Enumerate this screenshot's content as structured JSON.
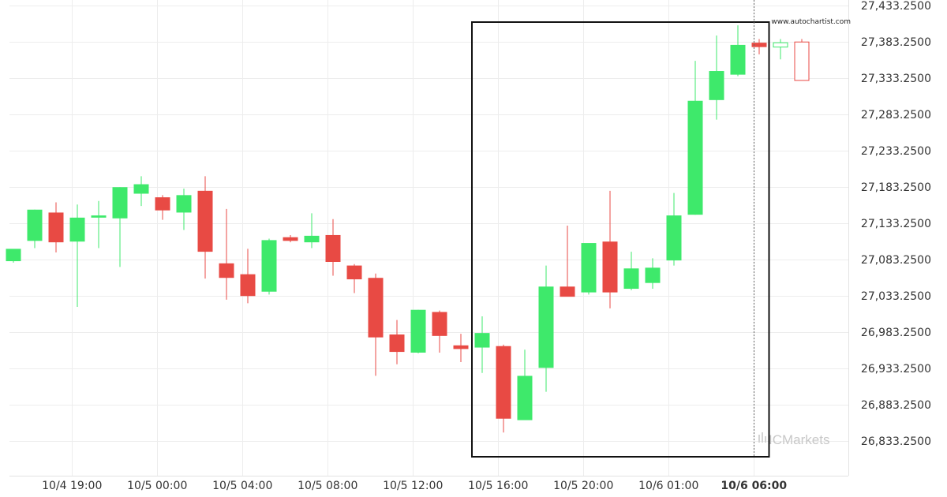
{
  "chart_data": {
    "type": "candlestick",
    "watermark_text": "www.autochartist.com",
    "brand_text": "ICMarkets",
    "grid": true,
    "y_axis_side": "right",
    "ylim": [
      26808.25,
      27433.25
    ],
    "y_ticks": [
      "27,433.2500",
      "27,383.2500",
      "27,333.2500",
      "27,283.2500",
      "27,233.2500",
      "27,183.2500",
      "27,133.2500",
      "27,083.2500",
      "27,033.2500",
      "26,983.2500",
      "26,933.2500",
      "26,883.2500",
      "26,833.2500"
    ],
    "x_labels": [
      {
        "label": "10/4 19:00",
        "index": 2.75,
        "bold": false
      },
      {
        "label": "10/5 00:00",
        "index": 6.75,
        "bold": false
      },
      {
        "label": "10/5 04:00",
        "index": 10.75,
        "bold": false
      },
      {
        "label": "10/5 08:00",
        "index": 14.75,
        "bold": false
      },
      {
        "label": "10/5 12:00",
        "index": 18.75,
        "bold": false
      },
      {
        "label": "10/5 16:00",
        "index": 22.75,
        "bold": false
      },
      {
        "label": "10/5 20:00",
        "index": 26.75,
        "bold": false
      },
      {
        "label": "10/6 01:00",
        "index": 30.75,
        "bold": false
      },
      {
        "label": "10/6 06:00",
        "index": 34.75,
        "bold": true
      }
    ],
    "candles": [
      {
        "o": 27081,
        "h": 27096,
        "l": 27079,
        "c": 27098,
        "bull": true
      },
      {
        "o": 27109,
        "h": 27152,
        "l": 27099,
        "c": 27152,
        "bull": true
      },
      {
        "o": 27148,
        "h": 27162,
        "l": 27093,
        "c": 27107,
        "bull": false
      },
      {
        "o": 27108,
        "h": 27159,
        "l": 27018,
        "c": 27141,
        "bull": true
      },
      {
        "o": 27141,
        "h": 27164,
        "l": 27099,
        "c": 27144,
        "bull": true
      },
      {
        "o": 27140,
        "h": 27183,
        "l": 27073,
        "c": 27183,
        "bull": true
      },
      {
        "o": 27174,
        "h": 27198,
        "l": 27157,
        "c": 27187,
        "bull": true
      },
      {
        "o": 27169,
        "h": 27172,
        "l": 27138,
        "c": 27151,
        "bull": false
      },
      {
        "o": 27148,
        "h": 27181,
        "l": 27124,
        "c": 27172,
        "bull": true
      },
      {
        "o": 27178,
        "h": 27198,
        "l": 27057,
        "c": 27094,
        "bull": false
      },
      {
        "o": 27078,
        "h": 27153,
        "l": 27028,
        "c": 27058,
        "bull": false
      },
      {
        "o": 27063,
        "h": 27098,
        "l": 27023,
        "c": 27033,
        "bull": false
      },
      {
        "o": 27039,
        "h": 27112,
        "l": 27035,
        "c": 27110,
        "bull": true
      },
      {
        "o": 27114,
        "h": 27117,
        "l": 27107,
        "c": 27109,
        "bull": false
      },
      {
        "o": 27107,
        "h": 27147,
        "l": 27099,
        "c": 27116,
        "bull": true
      },
      {
        "o": 27117,
        "h": 27139,
        "l": 27061,
        "c": 27080,
        "bull": false
      },
      {
        "o": 27075,
        "h": 27077,
        "l": 27037,
        "c": 27056,
        "bull": false
      },
      {
        "o": 27058,
        "h": 27064,
        "l": 26923,
        "c": 26976,
        "bull": false
      },
      {
        "o": 26980,
        "h": 27000,
        "l": 26939,
        "c": 26956,
        "bull": false
      },
      {
        "o": 26955,
        "h": 27014,
        "l": 26954,
        "c": 27014,
        "bull": true
      },
      {
        "o": 27011,
        "h": 27013,
        "l": 26955,
        "c": 26978,
        "bull": false
      },
      {
        "o": 26965,
        "h": 26981,
        "l": 26942,
        "c": 26960,
        "bull": false
      },
      {
        "o": 26962,
        "h": 27005,
        "l": 26927,
        "c": 26982,
        "bull": true
      },
      {
        "o": 26964,
        "h": 26966,
        "l": 26845,
        "c": 26864,
        "bull": false
      },
      {
        "o": 26862,
        "h": 26959,
        "l": 26862,
        "c": 26923,
        "bull": true
      },
      {
        "o": 26934,
        "h": 27075,
        "l": 26901,
        "c": 27046,
        "bull": true
      },
      {
        "o": 27046,
        "h": 27130,
        "l": 27037,
        "c": 27032,
        "bull": false
      },
      {
        "o": 27038,
        "h": 27105,
        "l": 27035,
        "c": 27106,
        "bull": true
      },
      {
        "o": 27108,
        "h": 27178,
        "l": 27016,
        "c": 27038,
        "bull": false
      },
      {
        "o": 27043,
        "h": 27094,
        "l": 27041,
        "c": 27071,
        "bull": true
      },
      {
        "o": 27051,
        "h": 27085,
        "l": 27043,
        "c": 27072,
        "bull": true
      },
      {
        "o": 27082,
        "h": 27175,
        "l": 27075,
        "c": 27144,
        "bull": true
      },
      {
        "o": 27145,
        "h": 27357,
        "l": 27145,
        "c": 27302,
        "bull": true
      },
      {
        "o": 27303,
        "h": 27392,
        "l": 27276,
        "c": 27343,
        "bull": true
      },
      {
        "o": 27338,
        "h": 27406,
        "l": 27336,
        "c": 27379,
        "bull": true
      },
      {
        "o": 27382,
        "h": 27387,
        "l": 27366,
        "c": 27376,
        "bull": false
      },
      {
        "o": 27376,
        "h": 27387,
        "l": 27359,
        "c": 27382,
        "bull": true,
        "hollow": true
      },
      {
        "o": 27383,
        "h": 27387,
        "l": 27330,
        "c": 27330,
        "bull": false,
        "hollow": true
      }
    ],
    "colors": {
      "bull": "#3ee96b",
      "bear": "#e84a44",
      "grid": "#ededed",
      "box": "#111111",
      "marker": "#666666",
      "text": "#333333"
    }
  }
}
